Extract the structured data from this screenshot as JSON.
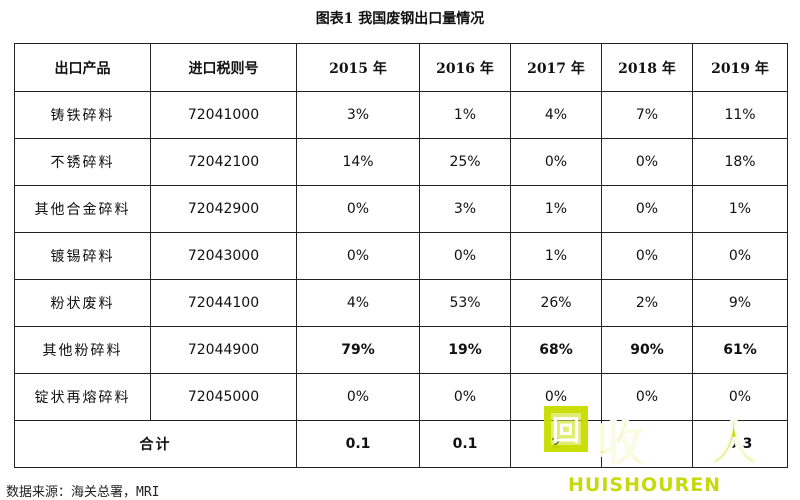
{
  "title": "图表1  我国废钢出口量情况",
  "table": {
    "headers": [
      "出口产品",
      "进口税则号",
      "2015 年",
      "2016 年",
      "2017 年",
      "2018 年",
      "2019 年"
    ],
    "rows": [
      {
        "product": "铸铁碎料",
        "code": "72041000",
        "values": [
          "3%",
          "1%",
          "4%",
          "7%",
          "11%"
        ]
      },
      {
        "product": "不锈碎料",
        "code": "72042100",
        "values": [
          "14%",
          "25%",
          "0%",
          "0%",
          "18%"
        ]
      },
      {
        "product": "其他合金碎料",
        "code": "72042900",
        "values": [
          "0%",
          "3%",
          "1%",
          "0%",
          "1%"
        ]
      },
      {
        "product": "镀锡碎料",
        "code": "72043000",
        "values": [
          "0%",
          "0%",
          "1%",
          "0%",
          "0%"
        ]
      },
      {
        "product": "粉状废料",
        "code": "72044100",
        "values": [
          "4%",
          "53%",
          "26%",
          "2%",
          "9%"
        ]
      },
      {
        "product": "其他粉碎料",
        "code": "72044900",
        "values": [
          "79%",
          "19%",
          "68%",
          "90%",
          "61%"
        ]
      },
      {
        "product": "锭状再熔碎料",
        "code": "72045000",
        "values": [
          "0%",
          "0%",
          "0%",
          "0%",
          "0%"
        ]
      }
    ],
    "total": {
      "label": "合计",
      "values": [
        "0.1",
        "0.1",
        "2",
        "",
        "0.3"
      ]
    }
  },
  "source": "数据来源：海关总署，MRI",
  "watermark": {
    "box_char": "回",
    "char1": "收",
    "char2": "人",
    "text": "HUISHOUREN"
  }
}
